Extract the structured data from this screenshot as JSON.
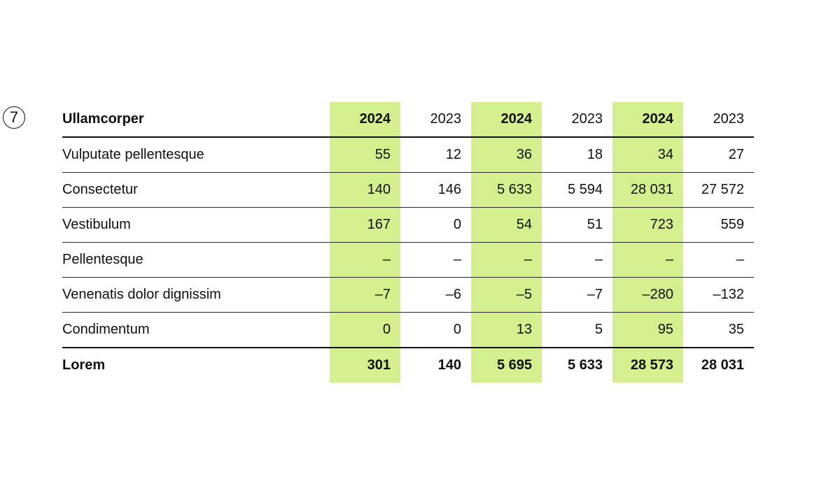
{
  "page_number": "7",
  "colors": {
    "highlight": "#d3ef8e",
    "text": "#111111",
    "rule": "#2a2a2a"
  },
  "table": {
    "header": {
      "label": "Ullamcorper",
      "years": [
        "2024",
        "2023",
        "2024",
        "2023",
        "2024",
        "2023"
      ]
    },
    "rows": [
      {
        "label": "Vulputate pellentesque",
        "values": [
          "55",
          "12",
          "36",
          "18",
          "34",
          "27"
        ]
      },
      {
        "label": "Consectetur",
        "values": [
          "140",
          "146",
          "5 633",
          "5 594",
          "28 031",
          "27 572"
        ]
      },
      {
        "label": "Vestibulum",
        "values": [
          "167",
          "0",
          "54",
          "51",
          "723",
          "559"
        ]
      },
      {
        "label": "Pellentesque",
        "values": [
          "–",
          "–",
          "–",
          "–",
          "–",
          "–"
        ]
      },
      {
        "label": "Venenatis dolor dignissim",
        "values": [
          "–7",
          "–6",
          "–5",
          "–7",
          "–280",
          "–132"
        ]
      },
      {
        "label": "Condimentum",
        "values": [
          "0",
          "0",
          "13",
          "5",
          "95",
          "35"
        ]
      }
    ],
    "total": {
      "label": "Lorem",
      "values": [
        "301",
        "140",
        "5 695",
        "5 633",
        "28 573",
        "28 031"
      ]
    }
  }
}
